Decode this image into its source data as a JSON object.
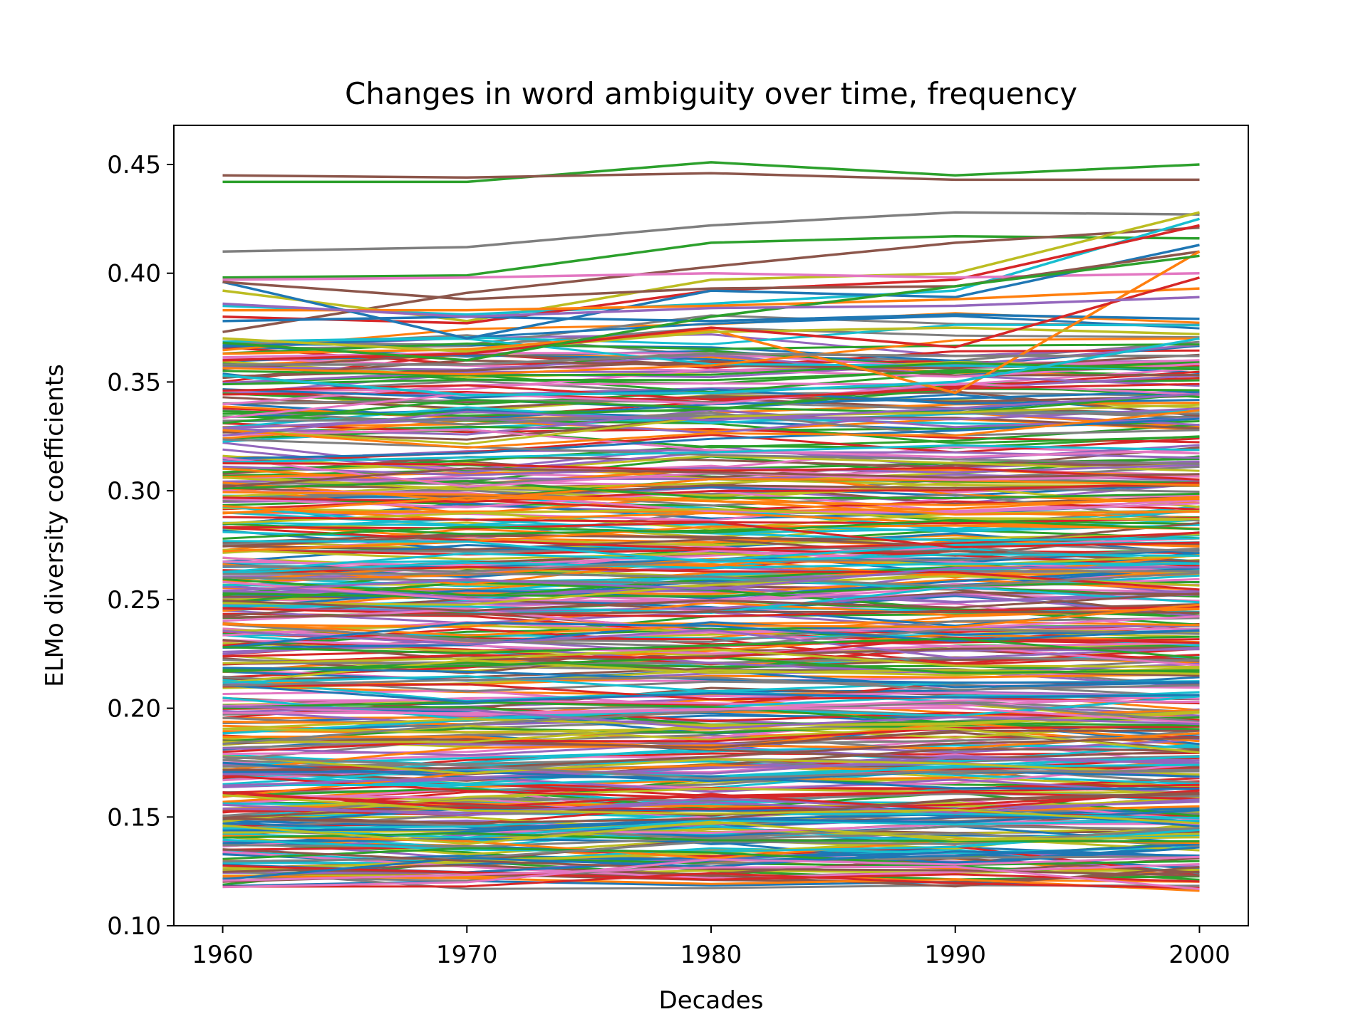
{
  "chart_data": {
    "type": "line",
    "title": "Changes in word ambiguity over time,  frequency",
    "xlabel": "Decades",
    "ylabel": "ELMo diversity coefficients",
    "x": [
      1960,
      1970,
      1980,
      1990,
      2000
    ],
    "x_ticks": [
      "1960",
      "1970",
      "1980",
      "1990",
      "2000"
    ],
    "y_ticks": [
      "0.10",
      "0.15",
      "0.20",
      "0.25",
      "0.30",
      "0.35",
      "0.40",
      "0.45"
    ],
    "xlim": [
      1958,
      2002
    ],
    "ylim": [
      0.1,
      0.468
    ],
    "grid": false,
    "legend": false,
    "palette": [
      "#1f77b4",
      "#ff7f0e",
      "#2ca02c",
      "#d62728",
      "#9467bd",
      "#8c564b",
      "#e377c2",
      "#7f7f7f",
      "#bcbd22",
      "#17becf"
    ],
    "series": [
      {
        "color": "#2ca02c",
        "values": [
          0.442,
          0.442,
          0.451,
          0.445,
          0.45
        ]
      },
      {
        "color": "#8c564b",
        "values": [
          0.445,
          0.444,
          0.446,
          0.443,
          0.443
        ]
      },
      {
        "color": "#7f7f7f",
        "values": [
          0.41,
          0.412,
          0.422,
          0.428,
          0.427
        ]
      },
      {
        "color": "#2ca02c",
        "values": [
          0.398,
          0.399,
          0.414,
          0.417,
          0.416
        ]
      },
      {
        "color": "#8c564b",
        "values": [
          0.373,
          0.391,
          0.403,
          0.414,
          0.421
        ]
      },
      {
        "color": "#bcbd22",
        "values": [
          0.392,
          0.378,
          0.397,
          0.4,
          0.428
        ]
      },
      {
        "color": "#17becf",
        "values": [
          0.385,
          0.381,
          0.386,
          0.392,
          0.425
        ]
      },
      {
        "color": "#d62728",
        "values": [
          0.38,
          0.377,
          0.392,
          0.397,
          0.422
        ]
      },
      {
        "color": "#e377c2",
        "values": [
          0.397,
          0.398,
          0.4,
          0.398,
          0.4
        ]
      },
      {
        "color": "#1f77b4",
        "values": [
          0.396,
          0.37,
          0.392,
          0.389,
          0.413
        ]
      },
      {
        "color": "#8c564b",
        "values": [
          0.396,
          0.388,
          0.393,
          0.394,
          0.41
        ]
      },
      {
        "color": "#ff7f0e",
        "values": [
          0.383,
          0.383,
          0.385,
          0.388,
          0.393
        ]
      },
      {
        "color": "#1f77b4",
        "values": [
          0.378,
          0.38,
          0.378,
          0.381,
          0.379
        ]
      },
      {
        "color": "#ff7f0e",
        "values": [
          0.363,
          0.365,
          0.374,
          0.345,
          0.41
        ]
      },
      {
        "color": "#bcbd22",
        "values": [
          0.37,
          0.364,
          0.373,
          0.375,
          0.372
        ]
      },
      {
        "color": "#d62728",
        "values": [
          0.36,
          0.363,
          0.375,
          0.366,
          0.398
        ]
      },
      {
        "color": "#7f7f7f",
        "values": [
          0.358,
          0.358,
          0.363,
          0.362,
          0.362
        ]
      },
      {
        "color": "#17becf",
        "values": [
          0.353,
          0.344,
          0.345,
          0.35,
          0.37
        ]
      },
      {
        "color": "#2ca02c",
        "values": [
          0.368,
          0.36,
          0.38,
          0.394,
          0.408
        ]
      },
      {
        "color": "#9467bd",
        "values": [
          0.386,
          0.38,
          0.384,
          0.385,
          0.389
        ]
      }
    ],
    "bundle": {
      "count": 460,
      "y_range": [
        0.12,
        0.37
      ],
      "seed": 7,
      "note": ""
    }
  }
}
